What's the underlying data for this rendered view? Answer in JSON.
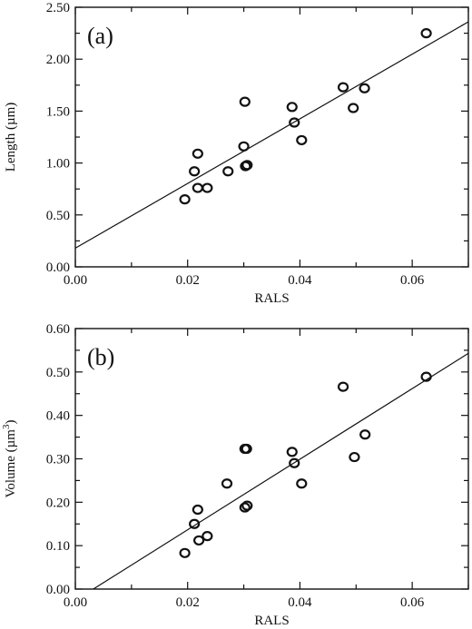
{
  "chart_data": [
    {
      "type": "scatter",
      "panel_label": "(a)",
      "xlabel": "RALS",
      "ylabel": "Length (µm)",
      "xlim": [
        0.0,
        0.07
      ],
      "ylim": [
        0.0,
        2.5
      ],
      "x_ticks": [
        "0.00",
        "0.02",
        "0.04",
        "0.06"
      ],
      "x_tick_values": [
        0.0,
        0.02,
        0.04,
        0.06
      ],
      "y_ticks": [
        "0.00",
        "0.50",
        "1.00",
        "1.50",
        "2.00",
        "2.50"
      ],
      "y_tick_values": [
        0.0,
        0.5,
        1.0,
        1.5,
        2.0,
        2.5
      ],
      "points": [
        {
          "x": 0.0195,
          "y": 0.65
        },
        {
          "x": 0.0212,
          "y": 0.92
        },
        {
          "x": 0.0218,
          "y": 1.09
        },
        {
          "x": 0.0218,
          "y": 0.76
        },
        {
          "x": 0.0235,
          "y": 0.76
        },
        {
          "x": 0.0272,
          "y": 0.92
        },
        {
          "x": 0.03,
          "y": 1.16
        },
        {
          "x": 0.0302,
          "y": 1.59
        },
        {
          "x": 0.0303,
          "y": 0.97
        },
        {
          "x": 0.0306,
          "y": 0.98
        },
        {
          "x": 0.0386,
          "y": 1.54
        },
        {
          "x": 0.039,
          "y": 1.39
        },
        {
          "x": 0.0403,
          "y": 1.22
        },
        {
          "x": 0.0477,
          "y": 1.73
        },
        {
          "x": 0.0495,
          "y": 1.53
        },
        {
          "x": 0.0515,
          "y": 1.72
        },
        {
          "x": 0.0625,
          "y": 2.25
        }
      ],
      "fit_line": {
        "x": [
          0.0,
          0.07
        ],
        "y": [
          0.18,
          2.36
        ]
      }
    },
    {
      "type": "scatter",
      "panel_label": "(b)",
      "xlabel": "RALS",
      "ylabel": "Volume (µm",
      "ylabel_superscript": "3",
      "ylabel_suffix": ")",
      "xlim": [
        0.0,
        0.07
      ],
      "ylim": [
        0.0,
        0.6
      ],
      "x_ticks": [
        "0.00",
        "0.02",
        "0.04",
        "0.06"
      ],
      "x_tick_values": [
        0.0,
        0.02,
        0.04,
        0.06
      ],
      "y_ticks": [
        "0.00",
        "0.10",
        "0.20",
        "0.30",
        "0.40",
        "0.50",
        "0.60"
      ],
      "y_tick_values": [
        0.0,
        0.1,
        0.2,
        0.3,
        0.4,
        0.5,
        0.6
      ],
      "points": [
        {
          "x": 0.0195,
          "y": 0.083
        },
        {
          "x": 0.0212,
          "y": 0.15
        },
        {
          "x": 0.0218,
          "y": 0.183
        },
        {
          "x": 0.022,
          "y": 0.112
        },
        {
          "x": 0.0235,
          "y": 0.122
        },
        {
          "x": 0.027,
          "y": 0.243
        },
        {
          "x": 0.0302,
          "y": 0.323
        },
        {
          "x": 0.0305,
          "y": 0.323
        },
        {
          "x": 0.0302,
          "y": 0.188
        },
        {
          "x": 0.0306,
          "y": 0.192
        },
        {
          "x": 0.0386,
          "y": 0.316
        },
        {
          "x": 0.039,
          "y": 0.29
        },
        {
          "x": 0.0403,
          "y": 0.243
        },
        {
          "x": 0.0477,
          "y": 0.466
        },
        {
          "x": 0.0497,
          "y": 0.304
        },
        {
          "x": 0.0516,
          "y": 0.356
        },
        {
          "x": 0.0625,
          "y": 0.489
        }
      ],
      "fit_line": {
        "x": [
          0.0032,
          0.07
        ],
        "y": [
          0.0,
          0.543
        ]
      }
    }
  ]
}
